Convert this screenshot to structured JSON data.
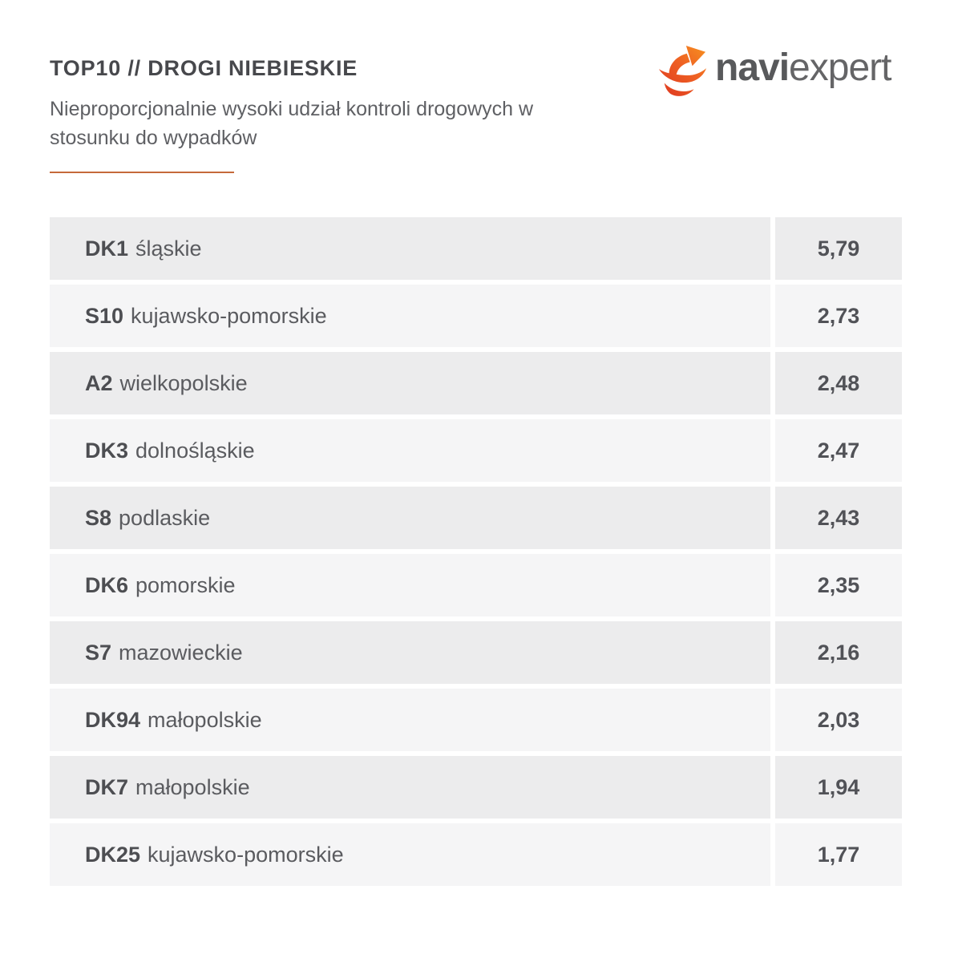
{
  "header": {
    "title": "TOP10 // DROGI NIEBIESKIE",
    "subtitle": "Nieproporcjonalnie wysoki udział kontroli drogowych w stosunku do wypadków"
  },
  "logo": {
    "icon_name": "naviexpert-arrow-swoosh-icon",
    "text_bold": "navi",
    "text_light": "expert"
  },
  "colors": {
    "accent_rule": "#c5693a",
    "logo_gradient_start": "#dd3520",
    "logo_gradient_end": "#f79420",
    "row_bg_odd": "#ececed",
    "row_bg_even": "#f5f5f6",
    "title_text": "#47484c",
    "subtitle_text": "#5f6064",
    "row_text": "#5a5b5f",
    "value_text": "#515257"
  },
  "chart_data": {
    "type": "table",
    "title": "TOP10 // DROGI NIEBIESKIE",
    "subtitle": "Nieproporcjonalnie wysoki udział kontroli drogowych w stosunku do wypadków",
    "rows": [
      {
        "code": "DK1",
        "region": "śląskie",
        "value": "5,79"
      },
      {
        "code": "S10",
        "region": "kujawsko-pomorskie",
        "value": "2,73"
      },
      {
        "code": "A2",
        "region": "wielkopolskie",
        "value": "2,48"
      },
      {
        "code": "DK3",
        "region": "dolnośląskie",
        "value": "2,47"
      },
      {
        "code": "S8",
        "region": "podlaskie",
        "value": "2,43"
      },
      {
        "code": "DK6",
        "region": "pomorskie",
        "value": "2,35"
      },
      {
        "code": "S7",
        "region": "mazowieckie",
        "value": "2,16"
      },
      {
        "code": "DK94",
        "region": "małopolskie",
        "value": "2,03"
      },
      {
        "code": "DK7",
        "region": "małopolskie",
        "value": "1,94"
      },
      {
        "code": "DK25",
        "region": "kujawsko-pomorskie",
        "value": "1,77"
      }
    ],
    "values_numeric": [
      5.79,
      2.73,
      2.48,
      2.47,
      2.43,
      2.35,
      2.16,
      2.03,
      1.94,
      1.77
    ],
    "layout_hints": {
      "value_column": "right",
      "gridlines": false,
      "legend": false
    }
  }
}
